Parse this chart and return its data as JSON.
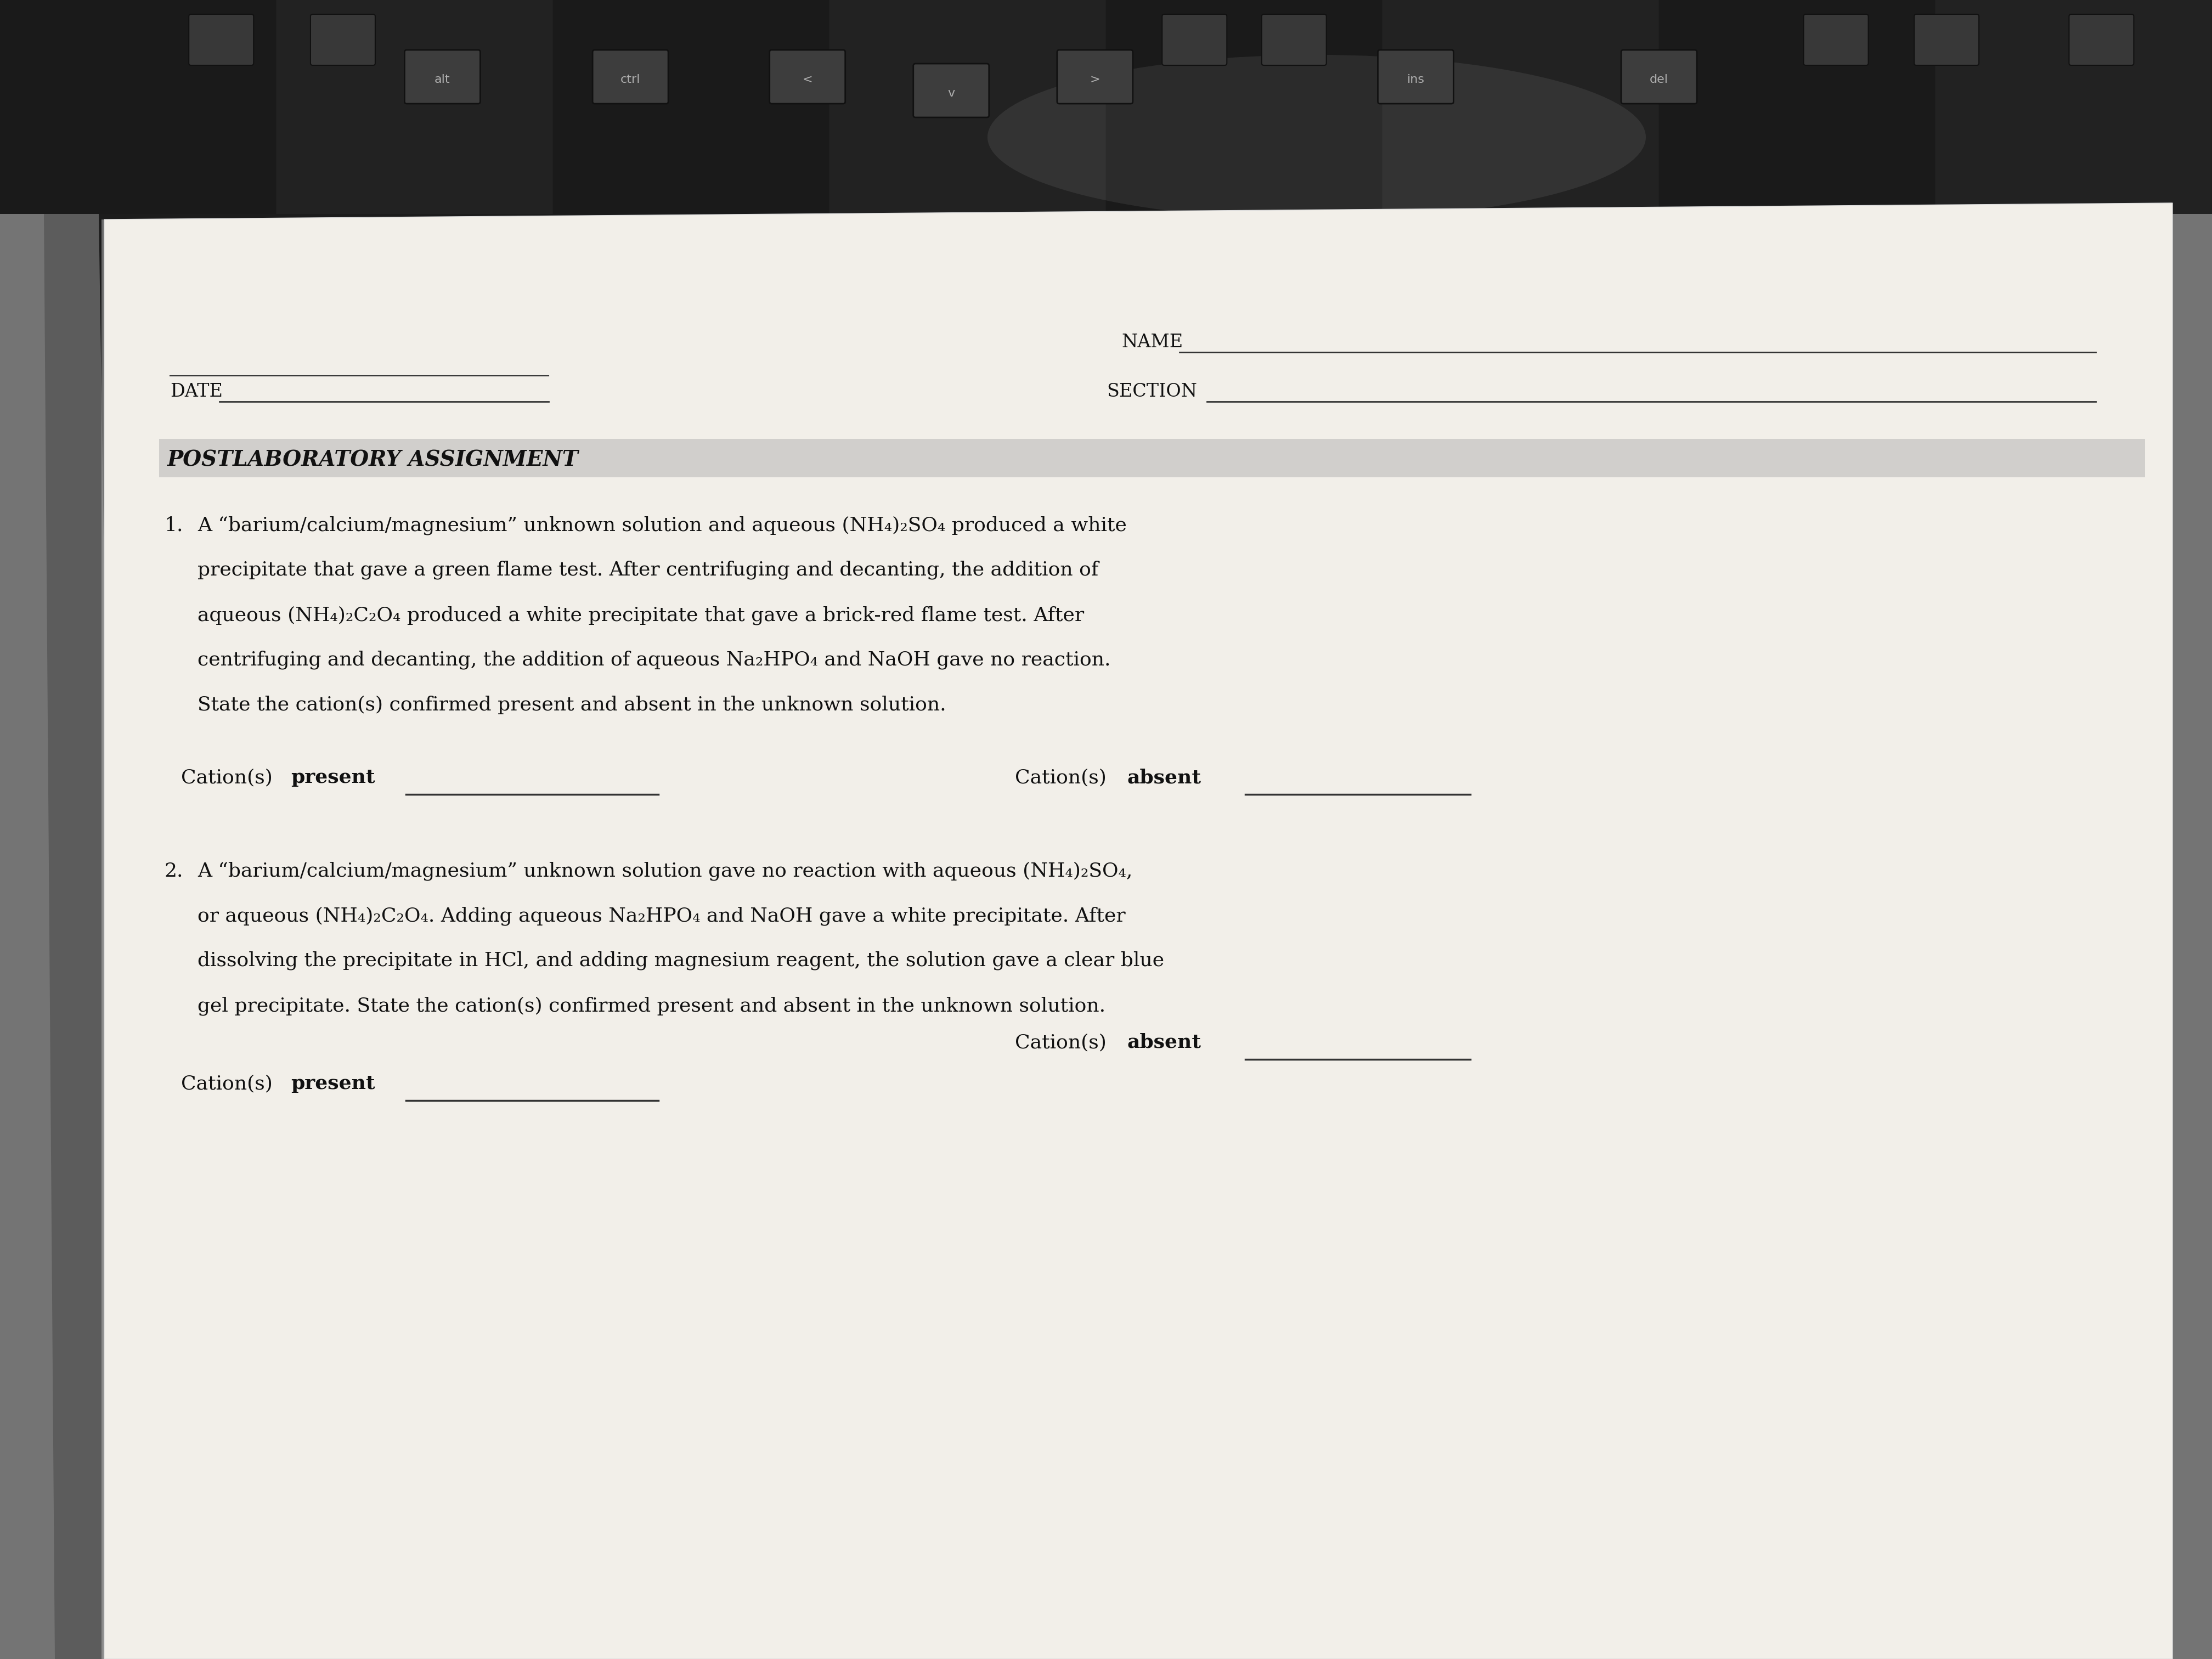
{
  "bg_color": "#1a1a2e",
  "keyboard_dark": "#1c1c1c",
  "keyboard_mid": "#2a2a2a",
  "key_face": "#3a3a3a",
  "paper_color": "#f2efe9",
  "paper_shadow": "#888888",
  "text_color": "#111111",
  "highlight_color": "#aaaaaa",
  "line_color": "#333333",
  "title": "POSTLABORATORY ASSIGNMENT",
  "name_label": "NAME",
  "section_label": "SECTION",
  "date_label": "DATE",
  "q1_number": "1.",
  "q1_line1": "A “barium/calcium/magnesium” unknown solution and aqueous (NH₄)₂SO₄ produced a white",
  "q1_line2": "precipitate that gave a green flame test. After centrifuging and decanting, the addition of",
  "q1_line3": "aqueous (NH₄)₂C₂O₄ produced a white precipitate that gave a brick-red flame test. After",
  "q1_line4": "centrifuging and decanting, the addition of aqueous Na₂HPO₄ and NaOH gave no reaction.",
  "q1_line5": "State the cation(s) confirmed present and absent in the unknown solution.",
  "q2_number": "2.",
  "q2_line1": "A “barium/calcium/magnesium” unknown solution gave no reaction with aqueous (NH₄)₂SO₄,",
  "q2_line2": "or aqueous (NH₄)₂C₂O₄. Adding aqueous Na₂HPO₄ and NaOH gave a white precipitate. After",
  "q2_line3": "dissolving the precipitate in HCl, and adding magnesium reagent, the solution gave a clear blue",
  "q2_line4": "gel precipitate. State the cation(s) confirmed present and absent in the unknown solution.",
  "cation_present": "Cation(s) present",
  "cation_absent": "Cation(s) absent",
  "font_body": 26,
  "font_title": 28,
  "font_header": 24,
  "font_keys": 16
}
